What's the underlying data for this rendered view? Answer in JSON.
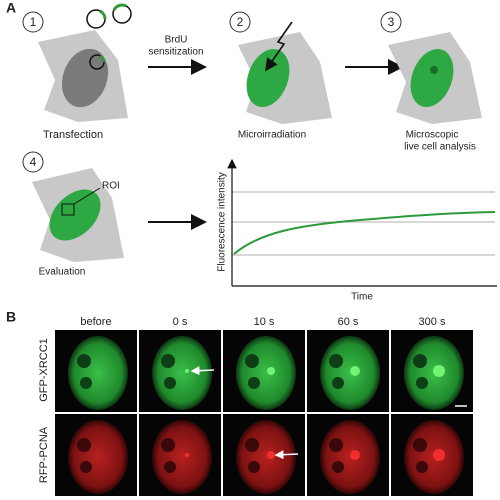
{
  "panel_a": {
    "label": "A",
    "steps": [
      {
        "number": "1",
        "caption": [
          "Transfection"
        ]
      },
      {
        "number": "2",
        "caption": [
          "Microirradiation"
        ]
      },
      {
        "number": "3",
        "caption": [
          "Microscopic",
          "live cell analysis"
        ]
      },
      {
        "number": "4",
        "caption": [
          "Evaluation"
        ]
      }
    ],
    "arrow_label": [
      "BrdU",
      "sensitization"
    ],
    "roi_label": "ROI",
    "graph": {
      "y_label": "Fluorescence intensity",
      "x_label": "Time"
    }
  },
  "panel_b": {
    "label": "B",
    "columns": [
      "before",
      "0 s",
      "10 s",
      "60 s",
      "300 s"
    ],
    "rows": [
      "GFP-XRCC1",
      "RFP-PCNA"
    ]
  }
}
